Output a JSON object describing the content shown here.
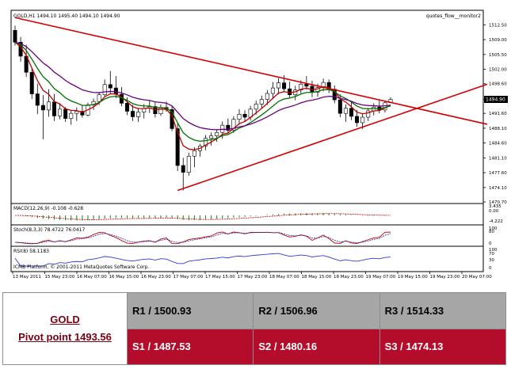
{
  "chart_data": [
    {
      "type": "candlestick",
      "title": "GOLD,H1  1494.10 1495.40 1494.10 1494.90",
      "watermark": "quotes_flow__monitor2",
      "price_axis": {
        "ticks": [
          "1512.50",
          "1509.00",
          "1505.50",
          "1502.00",
          "1498.60",
          "1494.90",
          "1491.60",
          "1488.10",
          "1484.60",
          "1481.10",
          "1477.60",
          "1474.10",
          "1470.70"
        ],
        "current_price": "1494.90",
        "ylim": [
          1470.7,
          1513.5
        ]
      },
      "time_axis": {
        "ticks": [
          "13 May 2011",
          "15 May 23:00",
          "16 May 07:00",
          "16 May 15:00",
          "16 May 23:00",
          "17 May 07:00",
          "17 May 15:00",
          "17 May 23:00",
          "18 May 07:00",
          "18 May 15:00",
          "18 May 23:00",
          "19 May 07:00",
          "19 May 15:00",
          "19 May 23:00",
          "20 May 07:00"
        ]
      },
      "candles": [
        [
          1511.2,
          1512.3,
          1507.6,
          1508.4
        ],
        [
          1508.4,
          1509.6,
          1503.8,
          1505.1
        ],
        [
          1505.1,
          1507.8,
          1500.2,
          1501.3
        ],
        [
          1501.3,
          1502.4,
          1495.0,
          1496.2
        ],
        [
          1496.2,
          1498.6,
          1491.4,
          1493.5
        ],
        [
          1493.5,
          1495.9,
          1485.5,
          1492.4
        ],
        [
          1492.4,
          1497.3,
          1490.8,
          1494.3
        ],
        [
          1494.3,
          1496.2,
          1489.8,
          1491.0
        ],
        [
          1491.0,
          1494.0,
          1490.2,
          1492.6
        ],
        [
          1492.6,
          1493.1,
          1489.6,
          1490.4
        ],
        [
          1490.4,
          1492.4,
          1488.9,
          1491.6
        ],
        [
          1491.6,
          1493.0,
          1489.8,
          1492.1
        ],
        [
          1492.1,
          1493.4,
          1490.6,
          1491.2
        ],
        [
          1491.2,
          1494.1,
          1490.9,
          1493.6
        ],
        [
          1493.6,
          1495.1,
          1492.4,
          1494.4
        ],
        [
          1494.4,
          1496.7,
          1493.6,
          1496.0
        ],
        [
          1496.0,
          1499.6,
          1495.4,
          1498.4
        ],
        [
          1498.4,
          1501.6,
          1496.3,
          1497.6
        ],
        [
          1497.6,
          1500.4,
          1495.2,
          1496.1
        ],
        [
          1496.1,
          1497.8,
          1493.3,
          1494.0
        ],
        [
          1494.0,
          1495.4,
          1491.2,
          1492.1
        ],
        [
          1492.1,
          1493.6,
          1489.8,
          1490.8
        ],
        [
          1490.8,
          1492.9,
          1489.6,
          1491.9
        ],
        [
          1491.9,
          1493.8,
          1490.4,
          1492.8
        ],
        [
          1492.8,
          1494.6,
          1491.7,
          1493.2
        ],
        [
          1493.2,
          1494.2,
          1490.6,
          1491.5
        ],
        [
          1491.5,
          1493.7,
          1491.0,
          1493.0
        ],
        [
          1493.0,
          1494.4,
          1492.0,
          1492.5
        ],
        [
          1492.5,
          1493.3,
          1487.4,
          1488.0
        ],
        [
          1488.0,
          1489.2,
          1478.0,
          1479.3
        ],
        [
          1479.3,
          1481.1,
          1473.4,
          1477.7
        ],
        [
          1477.7,
          1482.3,
          1476.9,
          1481.5
        ],
        [
          1481.5,
          1483.6,
          1478.9,
          1482.8
        ],
        [
          1482.8,
          1484.4,
          1481.4,
          1483.9
        ],
        [
          1483.9,
          1486.5,
          1482.9,
          1485.7
        ],
        [
          1485.7,
          1487.1,
          1484.0,
          1486.3
        ],
        [
          1486.3,
          1487.9,
          1484.9,
          1487.1
        ],
        [
          1487.1,
          1489.7,
          1485.6,
          1488.8
        ],
        [
          1488.8,
          1490.4,
          1486.8,
          1487.6
        ],
        [
          1487.6,
          1490.9,
          1487.0,
          1490.2
        ],
        [
          1490.2,
          1492.6,
          1488.9,
          1491.4
        ],
        [
          1491.4,
          1492.3,
          1489.6,
          1490.7
        ],
        [
          1490.7,
          1493.4,
          1489.9,
          1492.6
        ],
        [
          1492.6,
          1494.6,
          1491.3,
          1493.8
        ],
        [
          1493.8,
          1495.8,
          1492.8,
          1494.9
        ],
        [
          1494.9,
          1497.1,
          1493.6,
          1496.3
        ],
        [
          1496.3,
          1499.0,
          1495.0,
          1497.6
        ],
        [
          1497.6,
          1499.9,
          1496.1,
          1498.8
        ],
        [
          1498.8,
          1500.6,
          1496.6,
          1497.4
        ],
        [
          1497.4,
          1499.1,
          1495.3,
          1496.0
        ],
        [
          1496.0,
          1498.1,
          1494.7,
          1497.1
        ],
        [
          1497.1,
          1499.4,
          1496.3,
          1498.5
        ],
        [
          1498.5,
          1500.4,
          1497.2,
          1498.0
        ],
        [
          1498.0,
          1499.3,
          1495.4,
          1496.6
        ],
        [
          1496.6,
          1498.6,
          1495.5,
          1497.7
        ],
        [
          1497.7,
          1499.8,
          1496.8,
          1498.9
        ],
        [
          1498.9,
          1499.6,
          1496.4,
          1497.3
        ],
        [
          1497.3,
          1498.2,
          1494.0,
          1494.8
        ],
        [
          1494.8,
          1496.1,
          1490.7,
          1491.6
        ],
        [
          1491.6,
          1493.7,
          1489.6,
          1492.8
        ],
        [
          1492.8,
          1494.2,
          1490.0,
          1490.9
        ],
        [
          1490.9,
          1492.4,
          1488.4,
          1489.4
        ],
        [
          1489.4,
          1491.6,
          1487.9,
          1490.7
        ],
        [
          1490.7,
          1492.9,
          1489.8,
          1492.2
        ],
        [
          1492.2,
          1494.0,
          1491.1,
          1493.1
        ],
        [
          1493.1,
          1494.6,
          1491.6,
          1492.4
        ],
        [
          1492.4,
          1494.5,
          1491.8,
          1494.1
        ],
        [
          1494.1,
          1495.4,
          1494.1,
          1494.9
        ]
      ],
      "overlays": [
        {
          "color": "#b5001f",
          "line_type": "resistance",
          "from": [
            0,
            1514.2
          ],
          "to": [
            81,
            1490.0
          ]
        },
        {
          "color": "#b5001f",
          "line_type": "support",
          "from": [
            29,
            1473.4
          ],
          "to": [
            81,
            1497.0
          ]
        }
      ]
    },
    {
      "type": "histogram",
      "title": "MACD(12,26,9) -0.108 -0.628",
      "axis_ticks": [
        "3.435",
        "0.00",
        "-4.222"
      ]
    },
    {
      "type": "line",
      "title": "Stoch(8,3,3) 78.4722 76.0417",
      "axis_ticks": [
        "100",
        "80",
        "0"
      ]
    },
    {
      "type": "line",
      "title": "RSI(8) 58.1183",
      "axis_ticks": [
        "100",
        "70",
        "30",
        "0"
      ]
    }
  ],
  "footer": {
    "copyright": "ICMB Platform, © 2001-2011 MetaQuotes Software Corp."
  },
  "pivot_table": {
    "symbol": "GOLD",
    "pivot": "Pivot point 1493.56",
    "resistances": [
      "R1 / 1500.93",
      "R2 / 1506.96",
      "R3 / 1514.33"
    ],
    "supports": [
      "S1 / 1487.53",
      "S2 / 1480.16",
      "S3 / 1474.13"
    ]
  },
  "colors": {
    "bull": "#000000",
    "bear": "#ffffff",
    "ma_fast": "#c00000",
    "ma_mid": "#007000",
    "ma_slow": "#6a0080",
    "trendline": "#d40000",
    "support_row": "#b40d2c",
    "resistance_row": "#a6a6a6"
  }
}
